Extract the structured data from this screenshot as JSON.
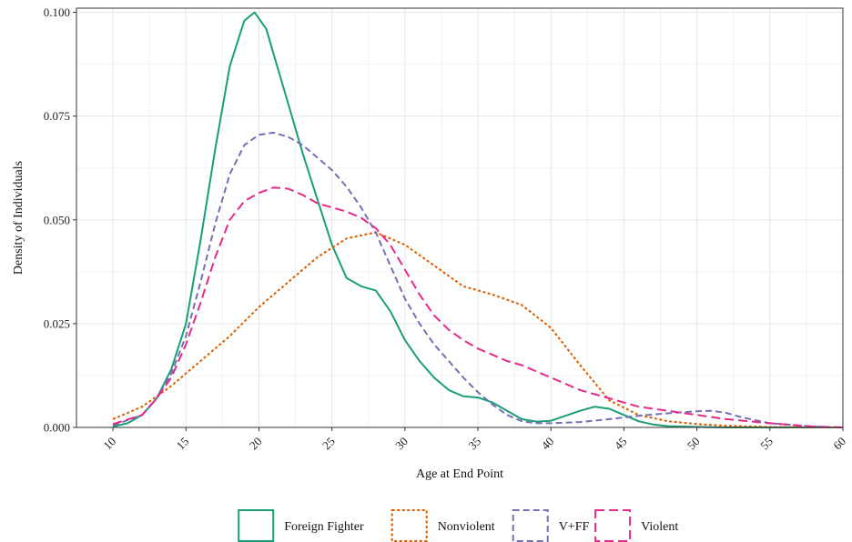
{
  "chart_data": {
    "type": "line",
    "title": "",
    "xlabel": "Age at End Point",
    "ylabel": "Density of Individuals",
    "xlim": [
      7.5,
      60
    ],
    "ylim": [
      0,
      0.101
    ],
    "x_ticks": [
      10,
      15,
      20,
      25,
      30,
      35,
      40,
      45,
      50,
      55,
      60
    ],
    "x_tick_labels": [
      "10",
      "15",
      "20",
      "25",
      "30",
      "35",
      "40",
      "45",
      "50",
      "55",
      "60"
    ],
    "y_ticks": [
      0,
      0.025,
      0.05,
      0.075,
      0.1
    ],
    "y_tick_labels": [
      "0.000",
      "0.025",
      "0.050",
      "0.075",
      "0.100"
    ],
    "grid": true,
    "legend_position": "bottom",
    "series": [
      {
        "name": "Foreign Fighter",
        "color": "#1b9e77",
        "style": "solid",
        "x": [
          10,
          11,
          12,
          13,
          14,
          15,
          16,
          17,
          18,
          19,
          19.7,
          20.5,
          21,
          22,
          23,
          24,
          25,
          26,
          27,
          28,
          29,
          30,
          31,
          32,
          33,
          34,
          35,
          36,
          37,
          38,
          39,
          40,
          41,
          42,
          43,
          44,
          45,
          46,
          47,
          48,
          50,
          52,
          55,
          58,
          60
        ],
        "y": [
          0.0002,
          0.001,
          0.003,
          0.007,
          0.014,
          0.025,
          0.045,
          0.067,
          0.087,
          0.098,
          0.1,
          0.096,
          0.09,
          0.078,
          0.066,
          0.055,
          0.044,
          0.036,
          0.034,
          0.033,
          0.028,
          0.021,
          0.016,
          0.012,
          0.009,
          0.0075,
          0.0072,
          0.006,
          0.004,
          0.002,
          0.0014,
          0.0016,
          0.0028,
          0.004,
          0.005,
          0.0045,
          0.003,
          0.0015,
          0.0007,
          0.0003,
          0.0001,
          0.0,
          0.0,
          0.0,
          0.0
        ]
      },
      {
        "name": "Nonviolent",
        "color": "#d95f02",
        "style": "dotted",
        "x": [
          10,
          12,
          14,
          16,
          18,
          20,
          22,
          24,
          26,
          28,
          30,
          32,
          34,
          36,
          38,
          40,
          42,
          44,
          46,
          48,
          50,
          52,
          55,
          58,
          60
        ],
        "y": [
          0.002,
          0.005,
          0.01,
          0.016,
          0.022,
          0.029,
          0.035,
          0.041,
          0.0455,
          0.047,
          0.044,
          0.039,
          0.034,
          0.032,
          0.0295,
          0.024,
          0.015,
          0.0065,
          0.003,
          0.0015,
          0.0008,
          0.0004,
          0.0001,
          0.0,
          0.0
        ]
      },
      {
        "name": "V+FF",
        "color": "#7570b3",
        "style": "dashed",
        "x": [
          10,
          12,
          13,
          14,
          15,
          16,
          17,
          18,
          19,
          20,
          21,
          22,
          23,
          24,
          25,
          26,
          27,
          28,
          29,
          30,
          31,
          32,
          33,
          34,
          35,
          36,
          37,
          38,
          39,
          40,
          42,
          44,
          46,
          48,
          50,
          51,
          52,
          53,
          55,
          58,
          60
        ],
        "y": [
          0.0005,
          0.003,
          0.007,
          0.013,
          0.022,
          0.035,
          0.049,
          0.061,
          0.068,
          0.0705,
          0.071,
          0.07,
          0.068,
          0.065,
          0.062,
          0.058,
          0.053,
          0.047,
          0.039,
          0.031,
          0.025,
          0.02,
          0.016,
          0.012,
          0.0085,
          0.0055,
          0.003,
          0.0015,
          0.001,
          0.001,
          0.0013,
          0.002,
          0.0028,
          0.0034,
          0.0039,
          0.004,
          0.0035,
          0.0025,
          0.001,
          0.0002,
          0.0
        ]
      },
      {
        "name": "Violent",
        "color": "#e7298a",
        "style": "longdash",
        "x": [
          10,
          12,
          13,
          14,
          15,
          16,
          17,
          18,
          19,
          20,
          21,
          22,
          23,
          24,
          25,
          26,
          27,
          28,
          29,
          30,
          31,
          32,
          33,
          34,
          35,
          36,
          37,
          38,
          39,
          40,
          41,
          42,
          43,
          44,
          45,
          46,
          48,
          50,
          52,
          55,
          58,
          60
        ],
        "y": [
          0.0008,
          0.003,
          0.007,
          0.012,
          0.02,
          0.03,
          0.041,
          0.05,
          0.0545,
          0.0565,
          0.0578,
          0.0575,
          0.056,
          0.054,
          0.053,
          0.052,
          0.0505,
          0.048,
          0.044,
          0.038,
          0.032,
          0.027,
          0.0235,
          0.021,
          0.019,
          0.0175,
          0.016,
          0.015,
          0.0135,
          0.012,
          0.0105,
          0.009,
          0.008,
          0.007,
          0.006,
          0.005,
          0.004,
          0.003,
          0.002,
          0.001,
          0.0002,
          0.0
        ]
      }
    ]
  }
}
